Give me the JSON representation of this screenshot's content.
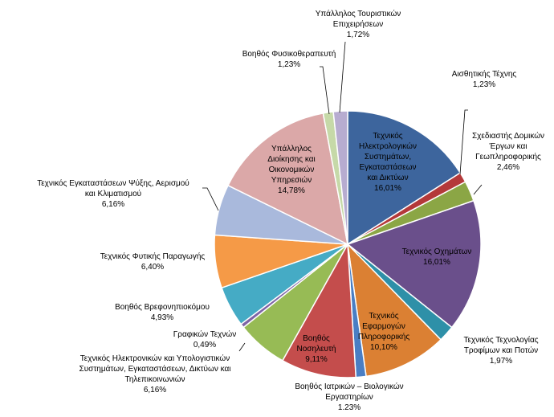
{
  "chart_data": {
    "type": "pie",
    "title": "",
    "slices": [
      {
        "label": [
          "Τεχνικός",
          "Ηλεκτρολογικών",
          "Συστημάτων,",
          "Εγκαταστάσεων",
          "και Δικτύων"
        ],
        "pct": "16,01%",
        "value": 16.01,
        "color": "#3d659d"
      },
      {
        "label": [
          "Αισθητικής Τέχνης"
        ],
        "pct": "1,23%",
        "value": 1.23,
        "color": "#b4393a"
      },
      {
        "label": [
          "Σχεδιαστής Δομικών",
          "Έργων και",
          "Γεωπληροφορικής"
        ],
        "pct": "2,46%",
        "value": 2.46,
        "color": "#8ba645"
      },
      {
        "label": [
          "Τεχνικός Οχημάτων"
        ],
        "pct": "16,01%",
        "value": 16.01,
        "color": "#6a4f8b"
      },
      {
        "label": [
          "Τεχνικός Τεχνολογίας",
          "Τροφίμων και Ποτών"
        ],
        "pct": "1,97%",
        "value": 1.97,
        "color": "#2e90a8"
      },
      {
        "label": [
          "Τεχνικός",
          "Εφαρμογών",
          "Πληροφορικής"
        ],
        "pct": "10,10%",
        "value": 10.1,
        "color": "#db8033"
      },
      {
        "label": [
          "Βοηθός Ιατρικών – Βιολογικών",
          "Εργαστηρίων"
        ],
        "pct": "1.23%",
        "value": 1.23,
        "color": "#4a7ec4"
      },
      {
        "label": [
          "Βοηθός",
          "Νοσηλευτή"
        ],
        "pct": "9,11%",
        "value": 9.11,
        "color": "#c44d4c"
      },
      {
        "label": [
          "Τεχνικός Ηλεκτρονικών και Υπολογιστικών",
          "Συστημάτων, Εγκαταστάσεων, Δικτύων και",
          "Τηλεπικοινωνιών"
        ],
        "pct": "6,16%",
        "value": 6.16,
        "color": "#97bb55"
      },
      {
        "label": [
          "Γραφικών Τεχνών"
        ],
        "pct": "0,49%",
        "value": 0.49,
        "color": "#7e64a6"
      },
      {
        "label": [
          "Βοηθός Βρεφονηπιοκόμου"
        ],
        "pct": "4,93%",
        "value": 4.93,
        "color": "#45abc5"
      },
      {
        "label": [
          "Τεχνικός Φυτικής Παραγωγής"
        ],
        "pct": "6,40%",
        "value": 6.4,
        "color": "#f59a47"
      },
      {
        "label": [
          "Τεχνικός Εγκαταστάσεων Ψύξης, Αερισμού",
          "και Κλιματισμού"
        ],
        "pct": "6,16%",
        "value": 6.16,
        "color": "#a9b9dc"
      },
      {
        "label": [
          "Υπάλληλος",
          "Διοίκησης και",
          "Οικονομικών",
          "Υπηρεσιών"
        ],
        "pct": "14,78%",
        "value": 14.78,
        "color": "#dba8a8"
      },
      {
        "label": [
          "Βοηθός Φυσικοθεραπευτή"
        ],
        "pct": "1,23%",
        "value": 1.23,
        "color": "#c6d9a8"
      },
      {
        "label": [
          "Υπάλληλος Τουριστικών",
          "Επιχειρήσεων"
        ],
        "pct": "1,72%",
        "value": 1.72,
        "color": "#b7acd0"
      }
    ]
  }
}
